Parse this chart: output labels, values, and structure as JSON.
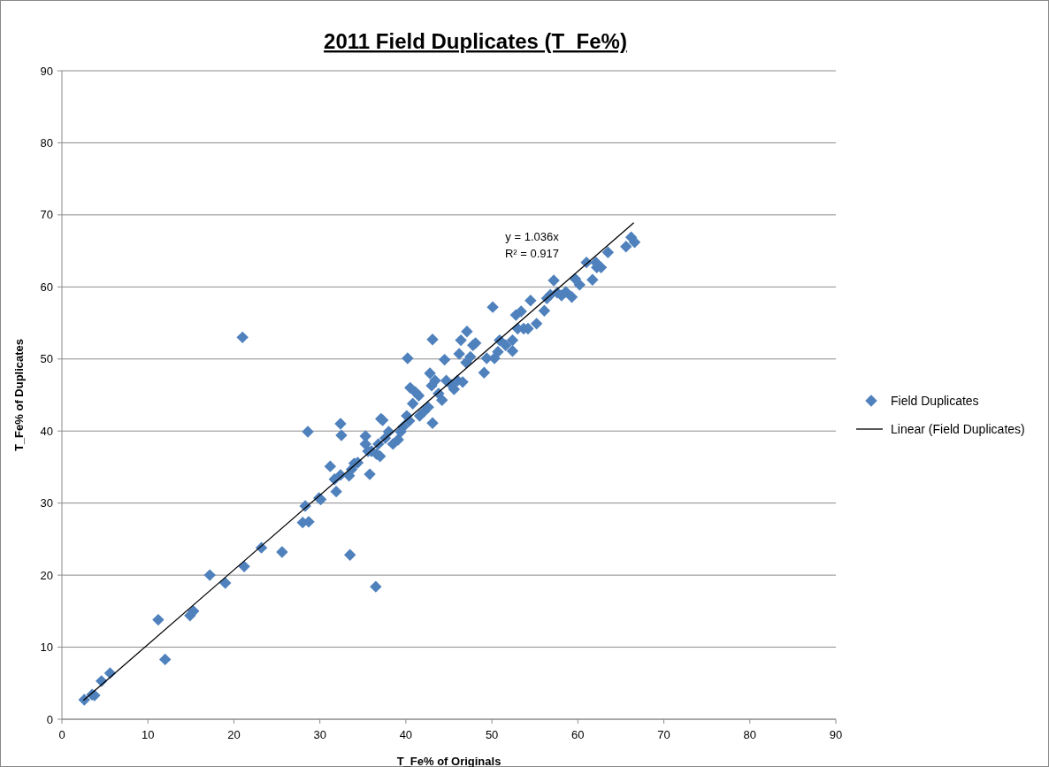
{
  "chart_data": {
    "type": "scatter",
    "title": "2011 Field Duplicates (T_Fe%)",
    "xlabel": "T_Fe% of Originals",
    "ylabel": "T_Fe% of Duplicates",
    "xlim": [
      0,
      90
    ],
    "xticks": [
      0,
      10,
      20,
      30,
      40,
      50,
      60,
      70,
      80,
      90
    ],
    "ylim": [
      0,
      90
    ],
    "yticks": [
      0,
      10,
      20,
      30,
      40,
      50,
      60,
      70,
      80,
      90
    ],
    "grid": "y",
    "legend": "right",
    "annotations": [
      "y = 1.036x",
      "R² = 0.917"
    ],
    "series": [
      {
        "name": "Field Duplicates",
        "color": "#4f81bd",
        "marker": "diamond",
        "x": [
          2.6,
          3.5,
          3.8,
          4.6,
          5.6,
          11.2,
          12.0,
          14.9,
          15.3,
          17.2,
          19.0,
          21.2,
          23.2,
          25.6,
          21.0,
          28.0,
          28.7,
          28.3,
          28.6,
          29.9,
          30.1,
          31.2,
          31.7,
          31.9,
          32.4,
          32.4,
          32.5,
          33.5,
          33.4,
          33.7,
          34.0,
          34.4,
          35.3,
          35.3,
          35.6,
          35.8,
          36.5,
          36.0,
          36.6,
          37.0,
          36.8,
          37.1,
          37.3,
          37.6,
          38.0,
          38.5,
          39.1,
          39.4,
          39.7,
          40.2,
          40.1,
          40.4,
          40.5,
          40.8,
          41.1,
          41.5,
          41.6,
          42.1,
          42.6,
          42.8,
          43.1,
          43.1,
          43.0,
          43.4,
          43.8,
          44.2,
          44.5,
          44.7,
          45.3,
          45.6,
          46.0,
          46.2,
          46.4,
          46.6,
          47.0,
          47.1,
          47.5,
          47.8,
          48.1,
          49.1,
          49.4,
          50.1,
          50.3,
          50.7,
          50.9,
          51.6,
          52.4,
          52.4,
          52.8,
          53.0,
          53.4,
          53.7,
          54.2,
          54.5,
          55.2,
          56.1,
          56.4,
          56.8,
          57.2,
          57.6,
          58.1,
          58.6,
          59.3,
          59.7,
          60.2,
          61.0,
          61.7,
          62.1,
          62.2,
          62.7,
          63.5,
          65.6,
          66.2,
          66.6
        ],
        "values": [
          2.7,
          3.4,
          3.3,
          5.3,
          6.4,
          13.8,
          8.3,
          14.4,
          15.0,
          20.0,
          18.9,
          21.2,
          23.8,
          23.2,
          53.0,
          27.3,
          27.4,
          29.6,
          39.9,
          30.7,
          30.5,
          35.1,
          33.3,
          31.6,
          33.9,
          41.0,
          39.4,
          22.8,
          33.8,
          34.7,
          35.5,
          35.6,
          39.3,
          38.2,
          37.2,
          34.0,
          18.4,
          37.2,
          36.8,
          36.5,
          38.2,
          41.7,
          41.5,
          39.0,
          39.9,
          38.2,
          38.8,
          39.9,
          40.6,
          50.1,
          42.1,
          41.4,
          46.0,
          43.8,
          45.4,
          44.9,
          42.1,
          42.7,
          43.3,
          48.0,
          52.7,
          41.1,
          46.3,
          47.0,
          45.2,
          44.3,
          49.9,
          47.0,
          46.4,
          45.8,
          47.0,
          50.7,
          52.6,
          46.8,
          49.5,
          53.8,
          50.3,
          51.9,
          52.2,
          48.1,
          50.1,
          57.2,
          50.1,
          51.0,
          52.6,
          51.9,
          51.1,
          52.6,
          56.1,
          54.2,
          56.6,
          54.2,
          54.2,
          58.1,
          54.9,
          56.7,
          58.4,
          58.9,
          60.9,
          59.2,
          58.8,
          59.3,
          58.6,
          61.1,
          60.3,
          63.4,
          61.0,
          63.4,
          62.7,
          62.7,
          64.8,
          65.6,
          66.9,
          66.2
        ]
      },
      {
        "name": "Linear (Field Duplicates)",
        "type": "line",
        "color": "#000000",
        "line_style": "solid",
        "x": [
          2.5,
          66.5
        ],
        "values": [
          2.6,
          68.9
        ]
      }
    ]
  }
}
